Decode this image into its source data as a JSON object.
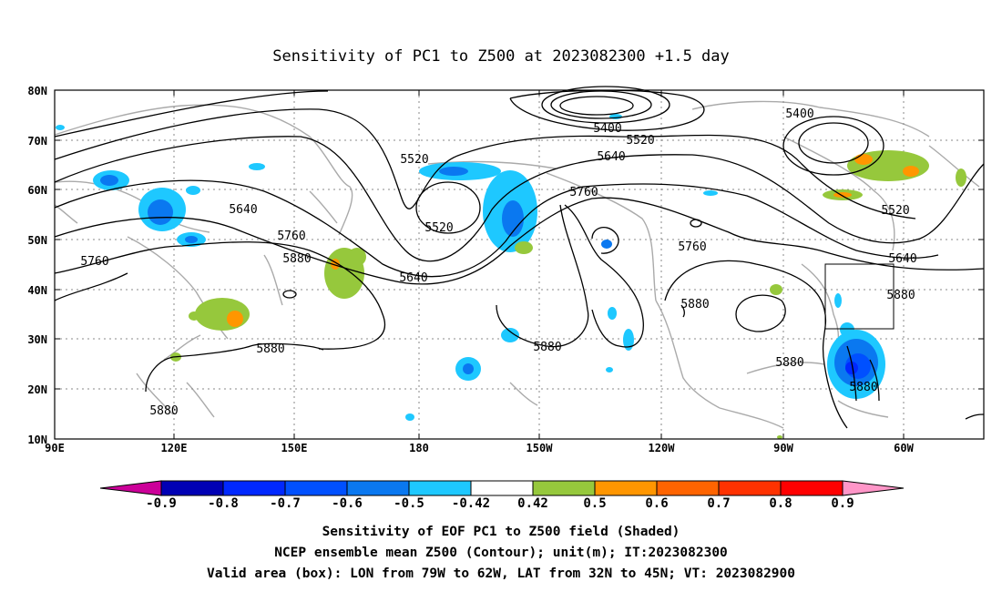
{
  "title": "Sensitivity of PC1 to Z500 at 2023082300 +1.5 day",
  "lat_labels": [
    "80N",
    "70N",
    "60N",
    "50N",
    "40N",
    "30N",
    "20N",
    "10N"
  ],
  "lon_labels": [
    "90E",
    "120E",
    "150E",
    "180",
    "150W",
    "120W",
    "90W",
    "60W"
  ],
  "contour_labels": [
    "5400",
    "5520",
    "5400",
    "5520",
    "5640",
    "5520",
    "5760",
    "5640",
    "5520",
    "5760",
    "5640",
    "5760",
    "5880",
    "5640",
    "5760",
    "5880",
    "5880",
    "5880",
    "5880",
    "5880",
    "5880",
    "5880"
  ],
  "colorbar": {
    "labels": [
      "-0.9",
      "-0.8",
      "-0.7",
      "-0.6",
      "-0.5",
      "-0.42",
      "0.42",
      "0.5",
      "0.6",
      "0.7",
      "0.8",
      "0.9"
    ],
    "colors": [
      "#cc0099",
      "#0000b4",
      "#0028ff",
      "#0050ff",
      "#0a78f0",
      "#1ec8ff",
      "#ffffff",
      "#96c83c",
      "#ff9600",
      "#ff6400",
      "#ff3200",
      "#ff0000",
      "#ff96c8"
    ]
  },
  "caption": {
    "line1": "Sensitivity of EOF PC1 to Z500 field (Shaded)",
    "line2": "NCEP ensemble mean Z500 (Contour); unit(m); IT:2023082300",
    "line3": "Valid area (box): LON from 79W to 62W, LAT from 32N to 45N; VT: 2023082900"
  },
  "valid_box": {
    "lon_min": -79,
    "lon_max": -62,
    "lat_min": 32,
    "lat_max": 45
  },
  "map_colors": {
    "coast": "#aaaaaa",
    "contour": "#000000",
    "grid": "#888888"
  }
}
